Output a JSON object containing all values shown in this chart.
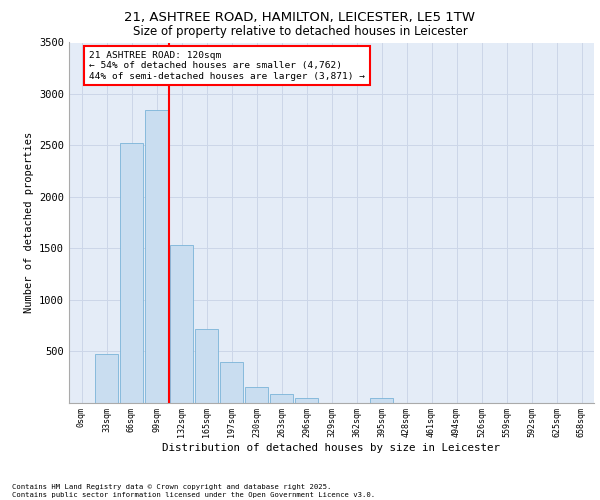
{
  "title_line1": "21, ASHTREE ROAD, HAMILTON, LEICESTER, LE5 1TW",
  "title_line2": "Size of property relative to detached houses in Leicester",
  "xlabel": "Distribution of detached houses by size in Leicester",
  "ylabel": "Number of detached properties",
  "bar_labels": [
    "0sqm",
    "33sqm",
    "66sqm",
    "99sqm",
    "132sqm",
    "165sqm",
    "197sqm",
    "230sqm",
    "263sqm",
    "296sqm",
    "329sqm",
    "362sqm",
    "395sqm",
    "428sqm",
    "461sqm",
    "494sqm",
    "526sqm",
    "559sqm",
    "592sqm",
    "625sqm",
    "658sqm"
  ],
  "bar_values": [
    0,
    470,
    2520,
    2840,
    1530,
    710,
    390,
    150,
    85,
    45,
    0,
    0,
    45,
    0,
    0,
    0,
    0,
    0,
    0,
    0,
    0
  ],
  "bar_color": "#c9ddf0",
  "bar_edge_color": "#7ab3d8",
  "grid_color": "#ccd6e8",
  "background_color": "#e4ecf7",
  "vline_x": 3.5,
  "vline_color": "red",
  "annotation_text": "21 ASHTREE ROAD: 120sqm\n← 54% of detached houses are smaller (4,762)\n44% of semi-detached houses are larger (3,871) →",
  "annotation_box_color": "red",
  "ylim": [
    0,
    3500
  ],
  "yticks": [
    0,
    500,
    1000,
    1500,
    2000,
    2500,
    3000,
    3500
  ],
  "footer_line1": "Contains HM Land Registry data © Crown copyright and database right 2025.",
  "footer_line2": "Contains public sector information licensed under the Open Government Licence v3.0."
}
